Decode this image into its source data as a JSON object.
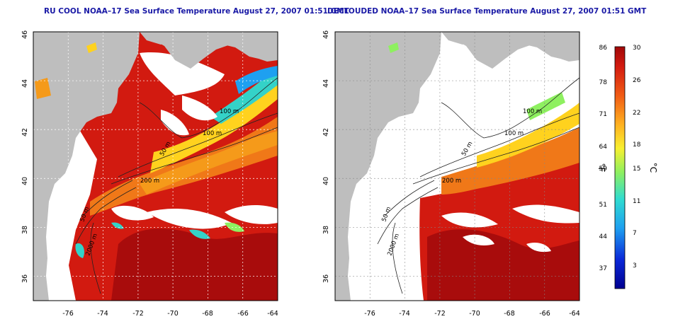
{
  "panels": [
    {
      "title": "RU COOL NOAA–17 Sea Surface Temperature August 27, 2007 01:51 GMT",
      "x_ticks": [
        "-76",
        "-74",
        "-72",
        "-70",
        "-68",
        "-66",
        "-64"
      ],
      "y_ticks": [
        "46",
        "44",
        "42",
        "40",
        "38",
        "36"
      ],
      "depth_labels": [
        "100 m",
        "100 m",
        "50 m",
        "200 m",
        "50 m",
        "2000 m"
      ]
    },
    {
      "title": "DECLOUDED NOAA–17 Sea Surface Temperature August 27, 2007 01:51 GMT",
      "x_ticks": [
        "-76",
        "-74",
        "-72",
        "-70",
        "-68",
        "-66",
        "-64"
      ],
      "y_ticks": [
        "46",
        "44",
        "42",
        "40",
        "38",
        "36"
      ],
      "depth_labels": [
        "100 m",
        "100 m",
        "50 m",
        "200 m",
        "50 m",
        "2000 m"
      ]
    }
  ],
  "colorbar": {
    "f_unit": "°F",
    "c_unit": "°C",
    "f_ticks": [
      "86",
      "78",
      "71",
      "64",
      "59",
      "51",
      "44",
      "37"
    ],
    "c_ticks": [
      "30",
      "26",
      "22",
      "18",
      "15",
      "11",
      "7",
      "3"
    ]
  },
  "colors": {
    "land": "#bebebe",
    "cloud": "#ffffff",
    "warm": "#d21a10",
    "hot": "#a80c0c",
    "mid": "#f07818",
    "yellow": "#ffd21e",
    "cool": "#34d2c8",
    "cold": "#1a4ad2",
    "title": "#1a1aa6"
  },
  "chart_data": {
    "type": "heatmap",
    "x_range": [
      -77,
      -63
    ],
    "y_range": [
      35,
      46
    ],
    "value_range_c": [
      0,
      30
    ],
    "value_range_f": [
      32,
      86
    ],
    "grid": true
  }
}
